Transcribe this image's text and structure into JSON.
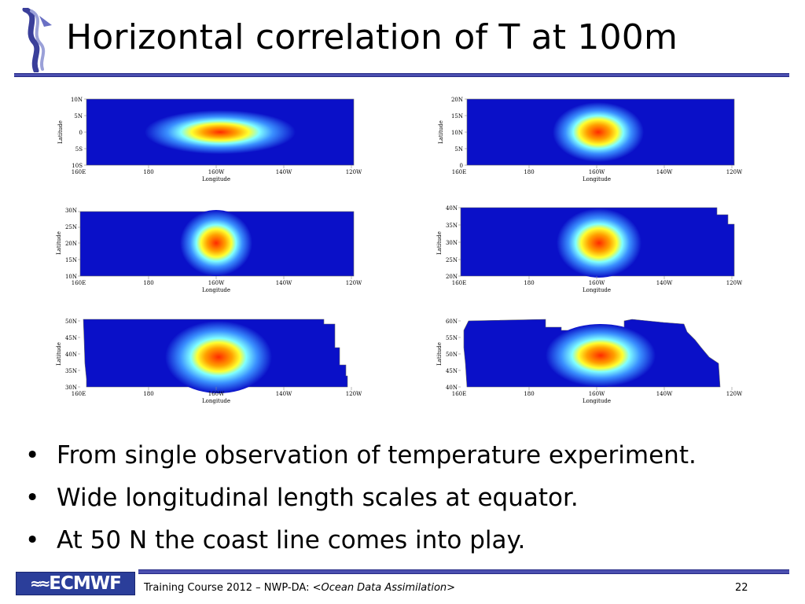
{
  "slide": {
    "title": "Horizontal correlation of T at 100m",
    "bullets": [
      "From single observation of temperature experiment.",
      "Wide longitudinal length scales at equator.",
      "At 50 N the coast line comes into play."
    ],
    "footer_prefix": "Training Course 2012 – NWP-DA: <",
    "footer_italic": "Ocean Data Assimilation",
    "footer_suffix": ">",
    "page_number": "22",
    "logo_text": "ECMWF",
    "logo_waves": "≈≈"
  },
  "plot_axes": {
    "x_label": "Longitude",
    "y_label": "Latitude",
    "x_ticks": [
      "160E",
      "180",
      "160W",
      "140W",
      "120W"
    ]
  },
  "panels": [
    {
      "y_ticks": [
        "10N",
        "5N",
        "0",
        "5S",
        "10S"
      ]
    },
    {
      "y_ticks": [
        "20N",
        "15N",
        "10N",
        "5N",
        "0"
      ]
    },
    {
      "y_ticks": [
        "30N",
        "25N",
        "20N",
        "15N",
        "10N"
      ]
    },
    {
      "y_ticks": [
        "40N",
        "35N",
        "30N",
        "25N",
        "20N"
      ]
    },
    {
      "y_ticks": [
        "50N",
        "45N",
        "40N",
        "35N",
        "30N"
      ]
    },
    {
      "y_ticks": [
        "60N",
        "55N",
        "50N",
        "45N",
        "40N"
      ]
    }
  ],
  "colors": {
    "ocean_field": "#0a10c8",
    "correlation_peak": "#ff3a00",
    "rule": "#4b4fb0",
    "logo_bg": "#2b3e9a"
  }
}
